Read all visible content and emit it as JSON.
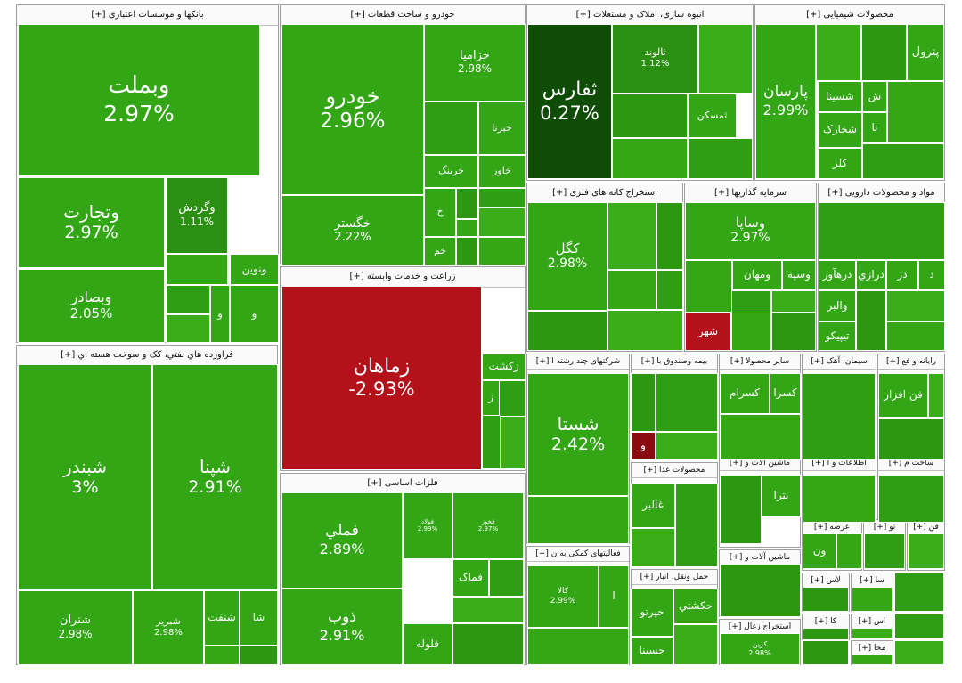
{
  "chart_data": {
    "type": "treemap",
    "title": "",
    "colors": {
      "up": "#32a614",
      "mid": "#2b8f12",
      "strong": "#1d6f0c",
      "darkest": "#0f4d06",
      "down": "#b3121b",
      "downdark": "#8a0c12"
    },
    "sectors": [
      {
        "name": "بانکها و موسسات اعتباری [+]",
        "stocks": [
          {
            "name": "وبملت",
            "value": 2.97
          },
          {
            "name": "وتجارت",
            "value": 2.97
          },
          {
            "name": "وگردش",
            "value": 1.11
          },
          {
            "name": "وبصادر",
            "value": 2.05
          },
          {
            "name": "ونوین",
            "value": null
          },
          {
            "name": "و",
            "value": null
          },
          {
            "name": "و",
            "value": null
          }
        ]
      },
      {
        "name": "خودرو و ساخت قطعات [+]",
        "stocks": [
          {
            "name": "خودرو",
            "value": 2.96
          },
          {
            "name": "خزاميا",
            "value": 2.98
          },
          {
            "name": "خبرنا",
            "value": null
          },
          {
            "name": "خاور",
            "value": null
          },
          {
            "name": "خرينگ",
            "value": null
          },
          {
            "name": "خگستر",
            "value": 2.22
          },
          {
            "name": "خ",
            "value": null
          },
          {
            "name": "خم",
            "value": null
          }
        ]
      },
      {
        "name": "انبوه سازی، املاک و مستغلات [+]",
        "stocks": [
          {
            "name": "ثفارس",
            "value": 0.27
          },
          {
            "name": "ثالوند",
            "value": 1.12
          },
          {
            "name": "ثمسکن",
            "value": null
          }
        ]
      },
      {
        "name": "محصولات شیمیایی [+]",
        "stocks": [
          {
            "name": "پارسان",
            "value": 2.99
          },
          {
            "name": "پترول",
            "value": null
          },
          {
            "name": "ش",
            "value": null
          },
          {
            "name": "شسينا",
            "value": null
          },
          {
            "name": "تا",
            "value": null
          },
          {
            "name": "شخارک",
            "value": null
          },
          {
            "name": "کلر",
            "value": null
          }
        ]
      },
      {
        "name": "استخراج کانه های فلزی [+]",
        "stocks": [
          {
            "name": "کگل",
            "value": 2.98
          }
        ]
      },
      {
        "name": "سرمایه گذاریها [+]",
        "stocks": [
          {
            "name": "وساپا",
            "value": 2.97
          },
          {
            "name": "وسپه",
            "value": null
          },
          {
            "name": "ومهان",
            "value": null
          },
          {
            "name": "شهر",
            "value": null
          }
        ]
      },
      {
        "name": "مواد و محصولات دارویی [+]",
        "stocks": [
          {
            "name": "درهآور",
            "value": null
          },
          {
            "name": "درازي",
            "value": null
          },
          {
            "name": "دز",
            "value": null
          },
          {
            "name": "د",
            "value": null
          },
          {
            "name": "والبر",
            "value": null
          },
          {
            "name": "تيپيکو",
            "value": null
          }
        ]
      },
      {
        "name": "زراعت و خدمات وابسته [+]",
        "stocks": [
          {
            "name": "زماهان",
            "value": -2.93
          },
          {
            "name": "زکشت",
            "value": null
          },
          {
            "name": "ز",
            "value": null
          }
        ]
      },
      {
        "name": "فراورده هاي نفتي، کک و سوخت هسته اي [+]",
        "stocks": [
          {
            "name": "شبندر",
            "value": 3
          },
          {
            "name": "شپنا",
            "value": 2.91
          },
          {
            "name": "شتران",
            "value": 2.98
          },
          {
            "name": "شبريز",
            "value": 2.98
          },
          {
            "name": "شنفت",
            "value": null
          },
          {
            "name": "شا",
            "value": null
          }
        ]
      },
      {
        "name": "فلزات اساسی [+]",
        "stocks": [
          {
            "name": "فملي",
            "value": 2.89
          },
          {
            "name": "فولاد",
            "value": 2.99
          },
          {
            "name": "فخوز",
            "value": 2.97
          },
          {
            "name": "فماک",
            "value": null
          },
          {
            "name": "ذوب",
            "value": 2.91
          },
          {
            "name": "فلوله",
            "value": null
          }
        ]
      },
      {
        "name": "شرکتهای چند رشته ا [+]",
        "stocks": [
          {
            "name": "شستا",
            "value": 2.42
          }
        ]
      },
      {
        "name": "بیمه وصندوق با [+]",
        "stocks": [
          {
            "name": "و",
            "value": null
          }
        ]
      },
      {
        "name": "سایر محصولا [+]",
        "stocks": [
          {
            "name": "کسرام",
            "value": null
          },
          {
            "name": "کسرا",
            "value": null
          }
        ]
      },
      {
        "name": "سیمان، آهک [+]",
        "stocks": []
      },
      {
        "name": "رایانه و فع [+]",
        "stocks": [
          {
            "name": "فن افزار",
            "value": null
          }
        ]
      },
      {
        "name": "فعالیتهای کمکی به ن [+]",
        "stocks": [
          {
            "name": "کالا",
            "value": 2.99
          },
          {
            "name": "ا",
            "value": null
          }
        ]
      },
      {
        "name": "محصولات غذا [+]",
        "stocks": [
          {
            "name": "غالبر",
            "value": null
          }
        ]
      },
      {
        "name": "ماشین آلات و [+]",
        "stocks": [
          {
            "name": "بترا",
            "value": null
          }
        ]
      },
      {
        "name": "اطلاعات و ا [+]",
        "stocks": []
      },
      {
        "name": "ساخت م [+]",
        "stocks": []
      },
      {
        "name": "حمل ونقل، انبار [+]",
        "stocks": [
          {
            "name": "حکشتي",
            "value": null
          },
          {
            "name": "حپرتو",
            "value": null
          },
          {
            "name": "حسينا",
            "value": null
          }
        ]
      },
      {
        "name": "ماشین آلات و [+]",
        "stocks": []
      },
      {
        "name": "عرضه [+]",
        "stocks": [
          {
            "name": "ون",
            "value": null
          }
        ]
      },
      {
        "name": "تو [+]",
        "stocks": []
      },
      {
        "name": "قن [+]",
        "stocks": []
      },
      {
        "name": "استخراج زغال [+]",
        "stocks": [
          {
            "name": "كرين",
            "value": 2.98
          }
        ]
      },
      {
        "name": "لاس [+]",
        "stocks": []
      },
      {
        "name": "سا [+]",
        "stocks": []
      },
      {
        "name": "اس [+]",
        "stocks": []
      },
      {
        "name": "کا [+]",
        "stocks": []
      },
      {
        "name": "مخا [+]",
        "stocks": []
      }
    ]
  }
}
